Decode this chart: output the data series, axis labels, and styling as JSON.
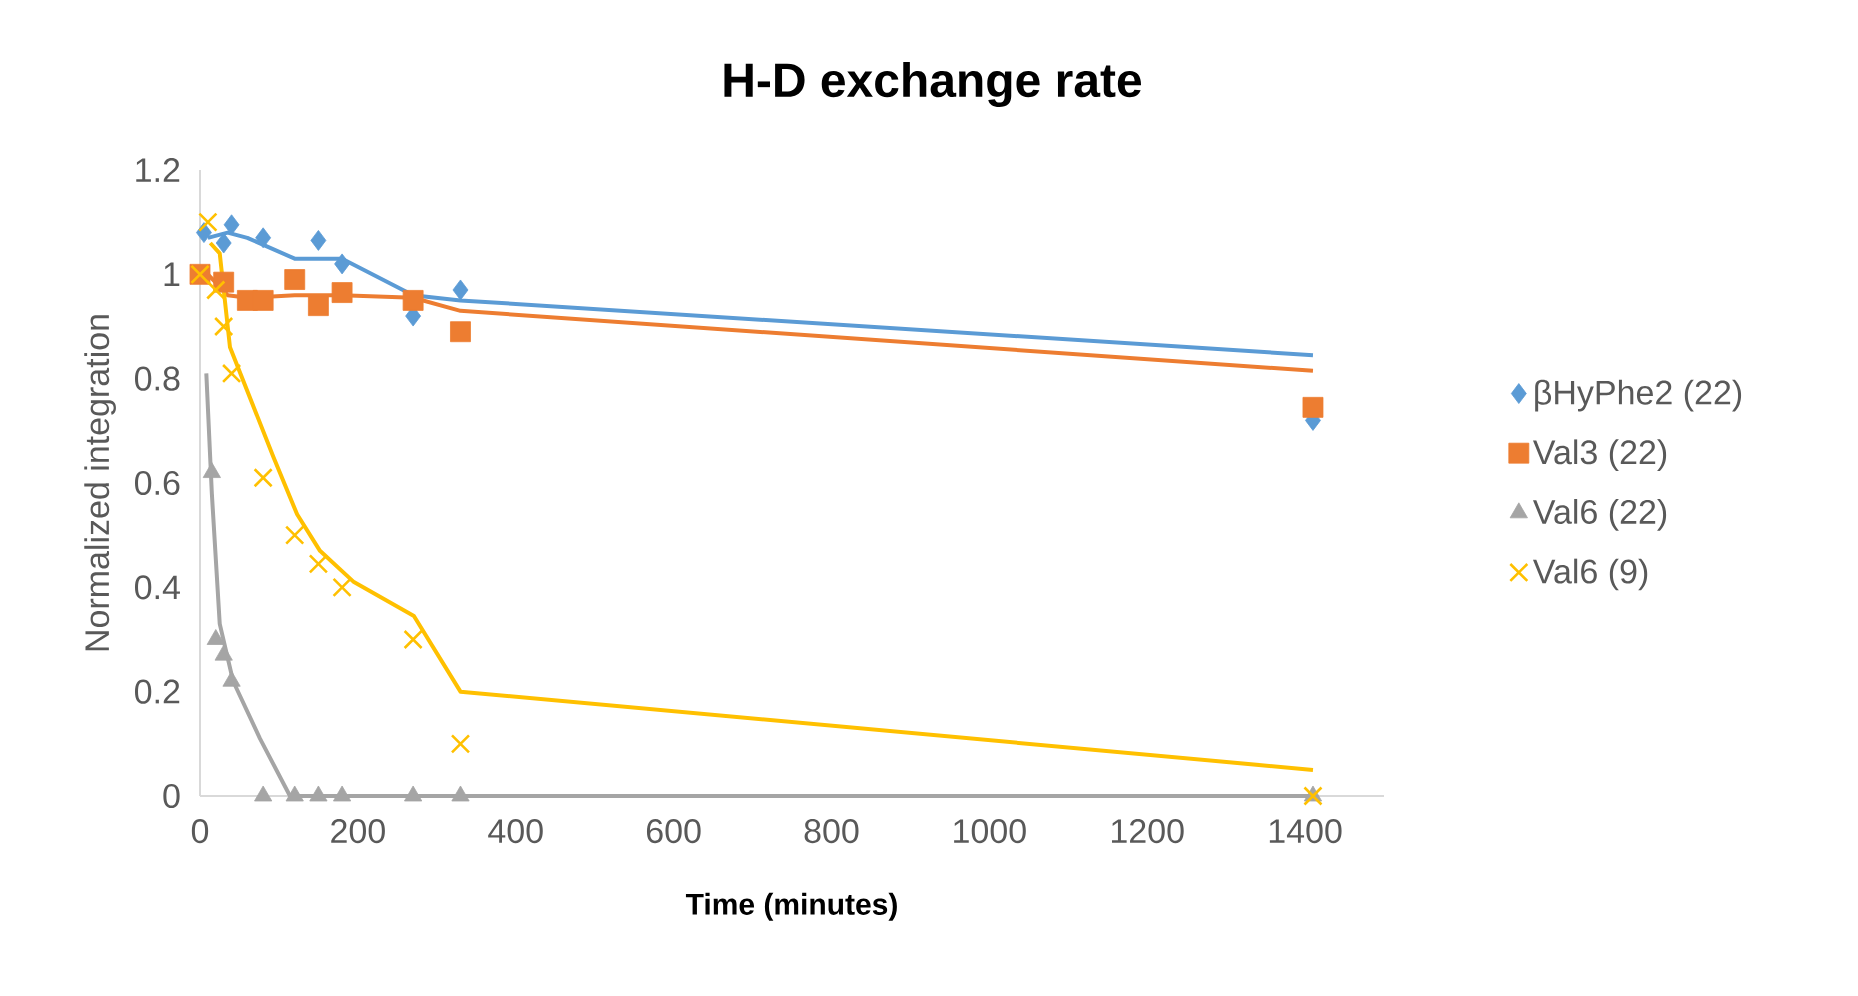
{
  "chart_data": {
    "type": "scatter",
    "title": "H-D exchange rate",
    "xlabel": "Time (minutes)",
    "ylabel": "Normalized integration",
    "xlim": [
      0,
      1500
    ],
    "xticks": [
      0,
      200,
      400,
      600,
      800,
      1000,
      1200,
      1400
    ],
    "ylim": [
      0,
      1.2
    ],
    "yticks": [
      0,
      0.2,
      0.4,
      0.6,
      0.8,
      1,
      1.2
    ],
    "grid": false,
    "legend": "right",
    "series": [
      {
        "type": "line",
        "color": "#5b9bd5",
        "x": [
          10,
          35,
          60,
          120,
          180,
          270,
          330,
          1410
        ],
        "values": [
          1.07,
          1.08,
          1.07,
          1.03,
          1.03,
          0.96,
          0.95,
          0.845
        ]
      },
      {
        "type": "line",
        "color": "#ed7d31",
        "x": [
          10,
          35,
          60,
          120,
          180,
          270,
          330,
          1410
        ],
        "values": [
          1.0,
          0.96,
          0.955,
          0.96,
          0.96,
          0.955,
          0.93,
          0.815
        ]
      },
      {
        "type": "line",
        "color": "#a5a5a5",
        "x": [
          8,
          15,
          25,
          42,
          76,
          114,
          180,
          270,
          330,
          1410
        ],
        "values": [
          0.81,
          0.58,
          0.33,
          0.22,
          0.11,
          0,
          0,
          0,
          0,
          0
        ]
      },
      {
        "type": "line",
        "color": "#ffc000",
        "x": [
          13,
          25,
          38,
          93,
          123,
          152,
          195,
          271,
          330,
          1410
        ],
        "values": [
          1.06,
          1.04,
          0.86,
          0.65,
          0.54,
          0.47,
          0.41,
          0.345,
          0.2,
          0.05
        ]
      },
      {
        "name": "βHyPhe2 (22)",
        "color": "#5b9bd5",
        "marker": "diamond",
        "x": [
          5,
          30,
          40,
          80,
          150,
          180,
          270,
          330,
          1410
        ],
        "values": [
          1.08,
          1.06,
          1.095,
          1.07,
          1.065,
          1.02,
          0.92,
          0.97,
          0.72
        ]
      },
      {
        "name": "Val3 (22)",
        "color": "#ed7d31",
        "marker": "square",
        "x": [
          0,
          30,
          60,
          80,
          120,
          150,
          180,
          270,
          330,
          1410
        ],
        "values": [
          1.0,
          0.985,
          0.95,
          0.95,
          0.99,
          0.94,
          0.965,
          0.95,
          0.89,
          0.745
        ]
      },
      {
        "name": "Val6 (22)",
        "color": "#a5a5a5",
        "marker": "triangle",
        "x": [
          15,
          20,
          30,
          40,
          80,
          120,
          150,
          180,
          270,
          330,
          1410
        ],
        "values": [
          0.62,
          0.3,
          0.27,
          0.22,
          0,
          0,
          0,
          0,
          0,
          0,
          0
        ]
      },
      {
        "name": "Val6 (9)",
        "color": "#ffc000",
        "marker": "cross",
        "x": [
          0,
          10,
          20,
          30,
          40,
          80,
          120,
          150,
          180,
          270,
          330,
          1410
        ],
        "values": [
          1.0,
          1.1,
          0.97,
          0.9,
          0.81,
          0.61,
          0.5,
          0.445,
          0.4,
          0.3,
          0.1,
          0
        ]
      }
    ]
  }
}
